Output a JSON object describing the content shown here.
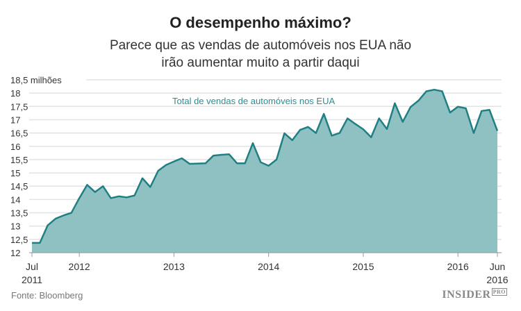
{
  "header": {
    "title": "O desempenho máximo?",
    "subtitle_line1": "Parece que as vendas de automóveis nos EUA não",
    "subtitle_line2": "irão aumentar muito a partir daqui"
  },
  "footer": {
    "source": "Fonte: Bloomberg",
    "logo": "INSIDER",
    "logo_sup": "PRO"
  },
  "chart_data": {
    "type": "area",
    "title": "O desempenho máximo?",
    "series_label": "Total de vendas de automóveis nos EUA",
    "ylabel_unit": "milhões",
    "ylim": [
      12,
      18.5
    ],
    "yticks": [
      "12",
      "12,5",
      "13",
      "13,5",
      "14",
      "14,5",
      "15",
      "15,5",
      "16",
      "16,5",
      "17",
      "17,5",
      "18",
      "18,5 milhões"
    ],
    "xticks": [
      {
        "month": 0,
        "line1": "Jul",
        "line2": "2011"
      },
      {
        "month": 6,
        "line1": "2012",
        "line2": ""
      },
      {
        "month": 18,
        "line1": "2013",
        "line2": ""
      },
      {
        "month": 30,
        "line1": "2014",
        "line2": ""
      },
      {
        "month": 42,
        "line1": "2015",
        "line2": ""
      },
      {
        "month": 54,
        "line1": "2016",
        "line2": ""
      },
      {
        "month": 59,
        "line1": "Jun",
        "line2": "2016"
      }
    ],
    "x_start": "2011-07",
    "x_end": "2016-06",
    "values": [
      12.37,
      12.37,
      13.03,
      13.28,
      13.4,
      13.5,
      14.05,
      14.55,
      14.28,
      14.5,
      14.05,
      14.12,
      14.08,
      14.15,
      14.8,
      14.47,
      15.08,
      15.3,
      15.43,
      15.55,
      15.34,
      15.35,
      15.36,
      15.65,
      15.68,
      15.7,
      15.36,
      15.36,
      16.12,
      15.4,
      15.27,
      15.5,
      16.49,
      16.23,
      16.62,
      16.73,
      16.5,
      17.22,
      16.4,
      16.5,
      17.05,
      16.84,
      16.64,
      16.34,
      17.05,
      16.65,
      17.62,
      16.92,
      17.48,
      17.72,
      18.07,
      18.13,
      18.07,
      17.27,
      17.49,
      17.43,
      16.5,
      17.33,
      17.37,
      16.58
    ],
    "colors": {
      "line": "#1f7f82",
      "fill": "#8fc1c3",
      "grid": "#e3e3e3",
      "label": "#2a8e90"
    }
  }
}
